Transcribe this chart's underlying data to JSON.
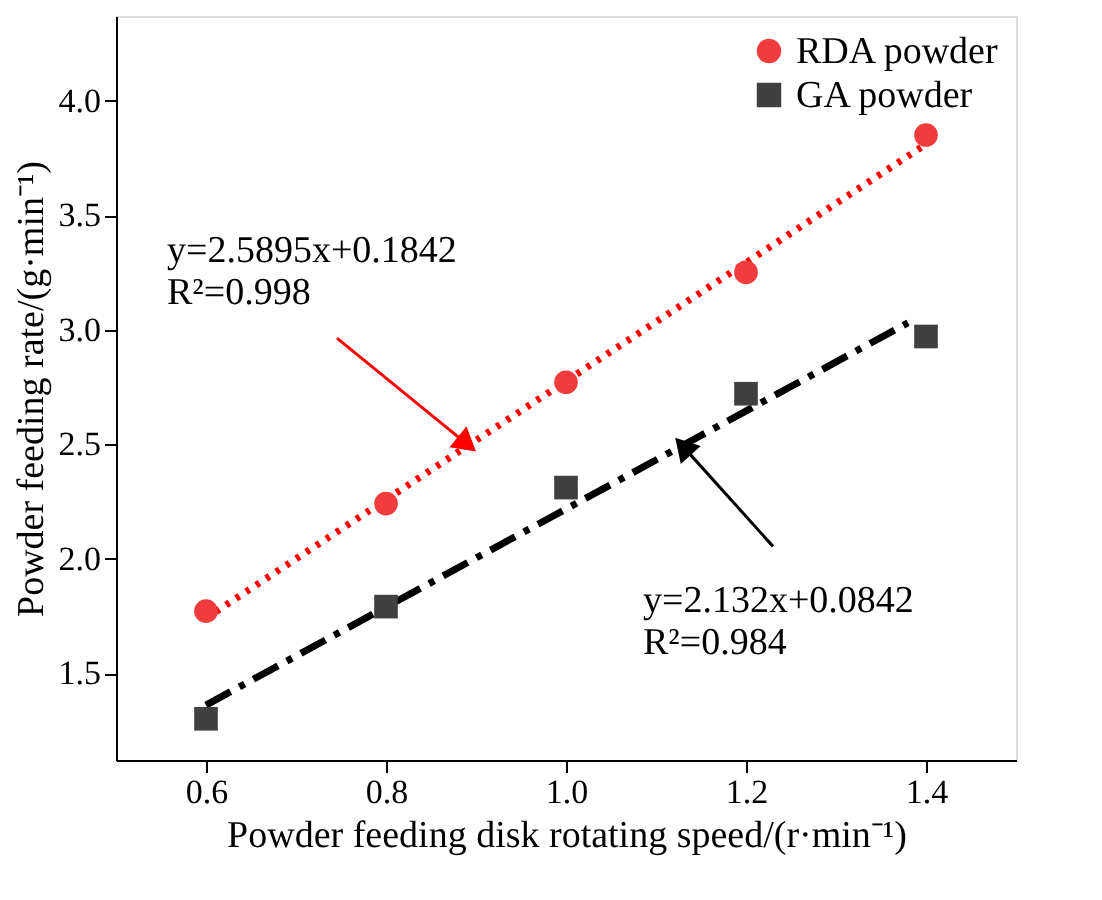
{
  "chart_data": {
    "type": "scatter",
    "xlabel": "Powder feeding disk rotating speed/(r·min⁻¹)",
    "ylabel": "Powder feeding rate/(g·min⁻¹)",
    "x": [
      0.6,
      0.8,
      1.0,
      1.2,
      1.4
    ],
    "series": [
      {
        "name": "RDA powder",
        "color": "#f03c3c",
        "marker": "circle",
        "values": [
          1.77,
          2.24,
          2.77,
          3.25,
          3.85
        ]
      },
      {
        "name": "GA powder",
        "color": "#404040",
        "marker": "square",
        "values": [
          1.3,
          1.79,
          2.31,
          2.72,
          2.97
        ]
      },
      {
        "type": "line",
        "color": "#ff0000",
        "line_style": "dotted",
        "x": [
          0.6,
          1.4
        ],
        "values": [
          1.74,
          3.81
        ]
      },
      {
        "type": "line",
        "color": "#000000",
        "line_style": "dashed",
        "x": [
          0.6,
          1.38
        ],
        "values": [
          1.36,
          3.03
        ]
      }
    ],
    "annotations": [
      {
        "text": "y=2.5895x+0.1842\nR²=0.998",
        "x": 0.89,
        "y": 2.5
      },
      {
        "text": "y=2.132x+0.0842\nR²=0.984",
        "x": 1.13,
        "y": 2.49
      }
    ],
    "xlim": [
      0.5,
      1.5
    ],
    "ylim": [
      1.12,
      4.37
    ],
    "xticks": [
      0.6,
      0.8,
      {
        "value": 1.0,
        "label": "1.0"
      },
      1.2,
      1.4
    ],
    "yticks": [
      1.5,
      {
        "value": 2.0,
        "label": "2.0"
      },
      2.5,
      {
        "value": 3.0,
        "label": "3.0"
      },
      3.5,
      {
        "value": 4.0,
        "label": "4.0"
      }
    ],
    "grid": false,
    "legend": "top right"
  }
}
